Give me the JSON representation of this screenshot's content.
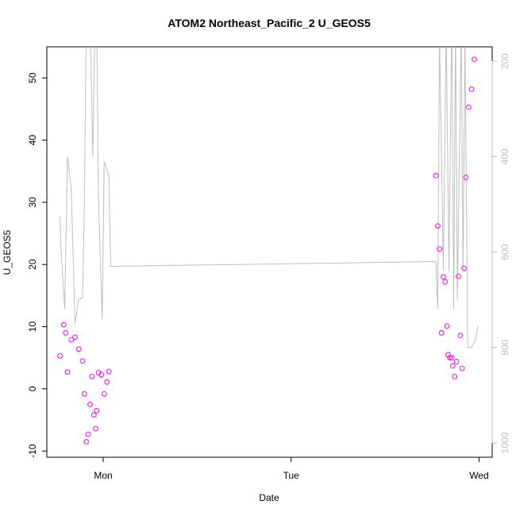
{
  "chart_data": {
    "type": "scatter",
    "title": "ATOM2 Northeast_Pacific_2 U_GEOS5",
    "xlabel": "Date",
    "ylabel": "U_GEOS5",
    "x_tick_labels": [
      "Mon",
      "Tue",
      "Wed"
    ],
    "x_tick_days": [
      1,
      2,
      3
    ],
    "xlim_days": [
      0.7,
      3.07
    ],
    "ylim": [
      -11,
      55
    ],
    "y_ticks": [
      -10,
      0,
      10,
      20,
      30,
      40,
      50
    ],
    "right_axis": {
      "ticks": [
        200,
        400,
        600,
        800,
        1000
      ],
      "lim": [
        170,
        1030
      ],
      "inverted": true,
      "color": "#bebebe"
    },
    "series": [
      {
        "kind": "points",
        "color": "#ff00ff",
        "points": [
          [
            0.77,
            5.3
          ],
          [
            0.79,
            10.3
          ],
          [
            0.8,
            9.0
          ],
          [
            0.81,
            2.7
          ],
          [
            0.83,
            7.9
          ],
          [
            0.85,
            8.3
          ],
          [
            0.87,
            6.4
          ],
          [
            0.89,
            4.5
          ],
          [
            0.9,
            -0.8
          ],
          [
            0.91,
            -8.5
          ],
          [
            0.92,
            -7.3
          ],
          [
            0.93,
            -2.5
          ],
          [
            0.94,
            2.0
          ],
          [
            0.95,
            -4.2
          ],
          [
            0.96,
            -6.4
          ],
          [
            0.965,
            -3.5
          ],
          [
            0.975,
            2.6
          ],
          [
            0.99,
            2.3
          ],
          [
            1.005,
            -0.8
          ],
          [
            1.02,
            1.1
          ],
          [
            1.03,
            2.8
          ],
          [
            2.77,
            34.3
          ],
          [
            2.78,
            26.2
          ],
          [
            2.79,
            22.5
          ],
          [
            2.8,
            9.0
          ],
          [
            2.81,
            18.0
          ],
          [
            2.82,
            17.2
          ],
          [
            2.83,
            10.1
          ],
          [
            2.835,
            5.5
          ],
          [
            2.845,
            5.0
          ],
          [
            2.855,
            5.0
          ],
          [
            2.86,
            3.7
          ],
          [
            2.87,
            2.0
          ],
          [
            2.88,
            4.4
          ],
          [
            2.89,
            18.1
          ],
          [
            2.9,
            8.6
          ],
          [
            2.91,
            3.3
          ],
          [
            2.92,
            19.4
          ],
          [
            2.93,
            34.0
          ],
          [
            2.945,
            45.3
          ],
          [
            2.96,
            48.2
          ],
          [
            2.975,
            53.0
          ]
        ]
      },
      {
        "kind": "line",
        "color": "#bebebe",
        "axis": "right",
        "points": [
          [
            0.77,
            525
          ],
          [
            0.775,
            590
          ],
          [
            0.795,
            720
          ],
          [
            0.81,
            400
          ],
          [
            0.83,
            470
          ],
          [
            0.85,
            750
          ],
          [
            0.87,
            700
          ],
          [
            0.89,
            695
          ],
          [
            0.9,
            500
          ],
          [
            0.91,
            100
          ],
          [
            0.93,
            100
          ],
          [
            0.945,
            400
          ],
          [
            0.955,
            150
          ],
          [
            0.965,
            100
          ],
          [
            0.975,
            490
          ],
          [
            0.995,
            740
          ],
          [
            1.005,
            410
          ],
          [
            1.03,
            440
          ],
          [
            1.04,
            630
          ],
          [
            2.77,
            620
          ],
          [
            2.78,
            720
          ],
          [
            2.79,
            150
          ],
          [
            2.81,
            640
          ],
          [
            2.825,
            130
          ],
          [
            2.84,
            640
          ],
          [
            2.855,
            100
          ],
          [
            2.865,
            720
          ],
          [
            2.875,
            130
          ],
          [
            2.885,
            700
          ],
          [
            2.905,
            130
          ],
          [
            2.915,
            640
          ],
          [
            2.925,
            150
          ],
          [
            2.94,
            800
          ],
          [
            2.96,
            800
          ],
          [
            2.98,
            785
          ],
          [
            2.995,
            755
          ]
        ]
      }
    ]
  }
}
